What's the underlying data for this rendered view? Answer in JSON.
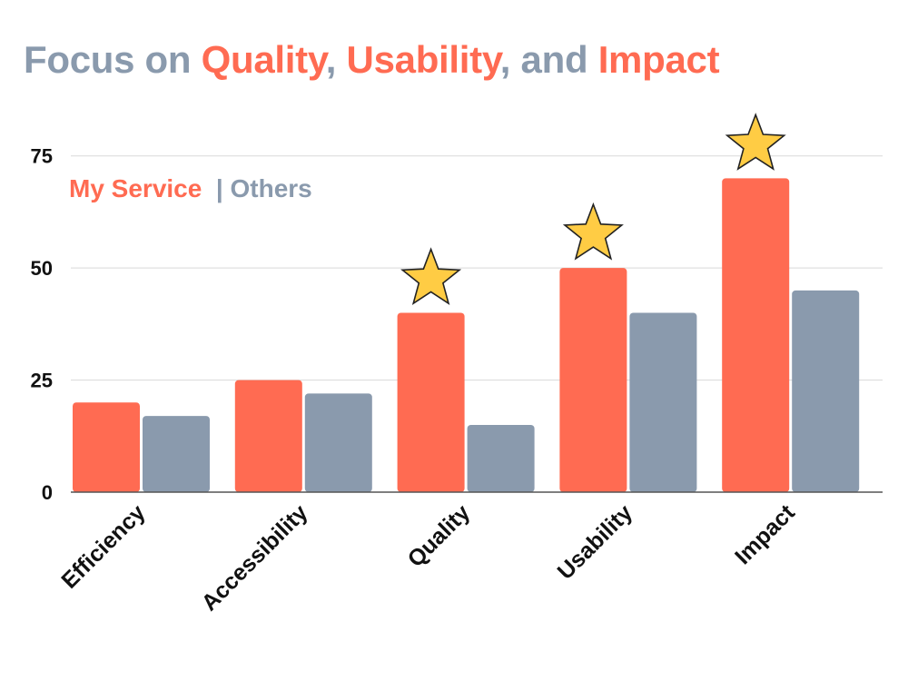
{
  "title": {
    "segments": [
      {
        "text": "Focus on ",
        "color": "#8a9aad"
      },
      {
        "text": "Quality",
        "color": "#ff6b52"
      },
      {
        "text": ", ",
        "color": "#8a9aad"
      },
      {
        "text": "Usability",
        "color": "#ff6b52"
      },
      {
        "text": ", and ",
        "color": "#8a9aad"
      },
      {
        "text": "Impact",
        "color": "#ff6b52"
      }
    ]
  },
  "legend": {
    "items": [
      {
        "text": "My Service",
        "color": "#ff6b52"
      },
      {
        "text": "  | ",
        "color": "#8a9aad"
      },
      {
        "text": "Others",
        "color": "#8a9aad"
      }
    ]
  },
  "chart_data": {
    "type": "bar",
    "categories": [
      "Efficiency",
      "Accessibility",
      "Quality",
      "Usability",
      "Impact"
    ],
    "series": [
      {
        "name": "My Service",
        "values": [
          20,
          25,
          40,
          50,
          70
        ],
        "color": "#ff6b52"
      },
      {
        "name": "Others",
        "values": [
          17,
          22,
          15,
          40,
          45
        ],
        "color": "#8a9aad"
      }
    ],
    "yticks": [
      0,
      25,
      50,
      75
    ],
    "ylim": [
      0,
      80
    ],
    "grid": true,
    "legend_position": "top-left",
    "highlighted_categories": [
      "Quality",
      "Usability",
      "Impact"
    ],
    "highlight_marker": "star-icon",
    "highlight_color": "#ffcc44"
  }
}
